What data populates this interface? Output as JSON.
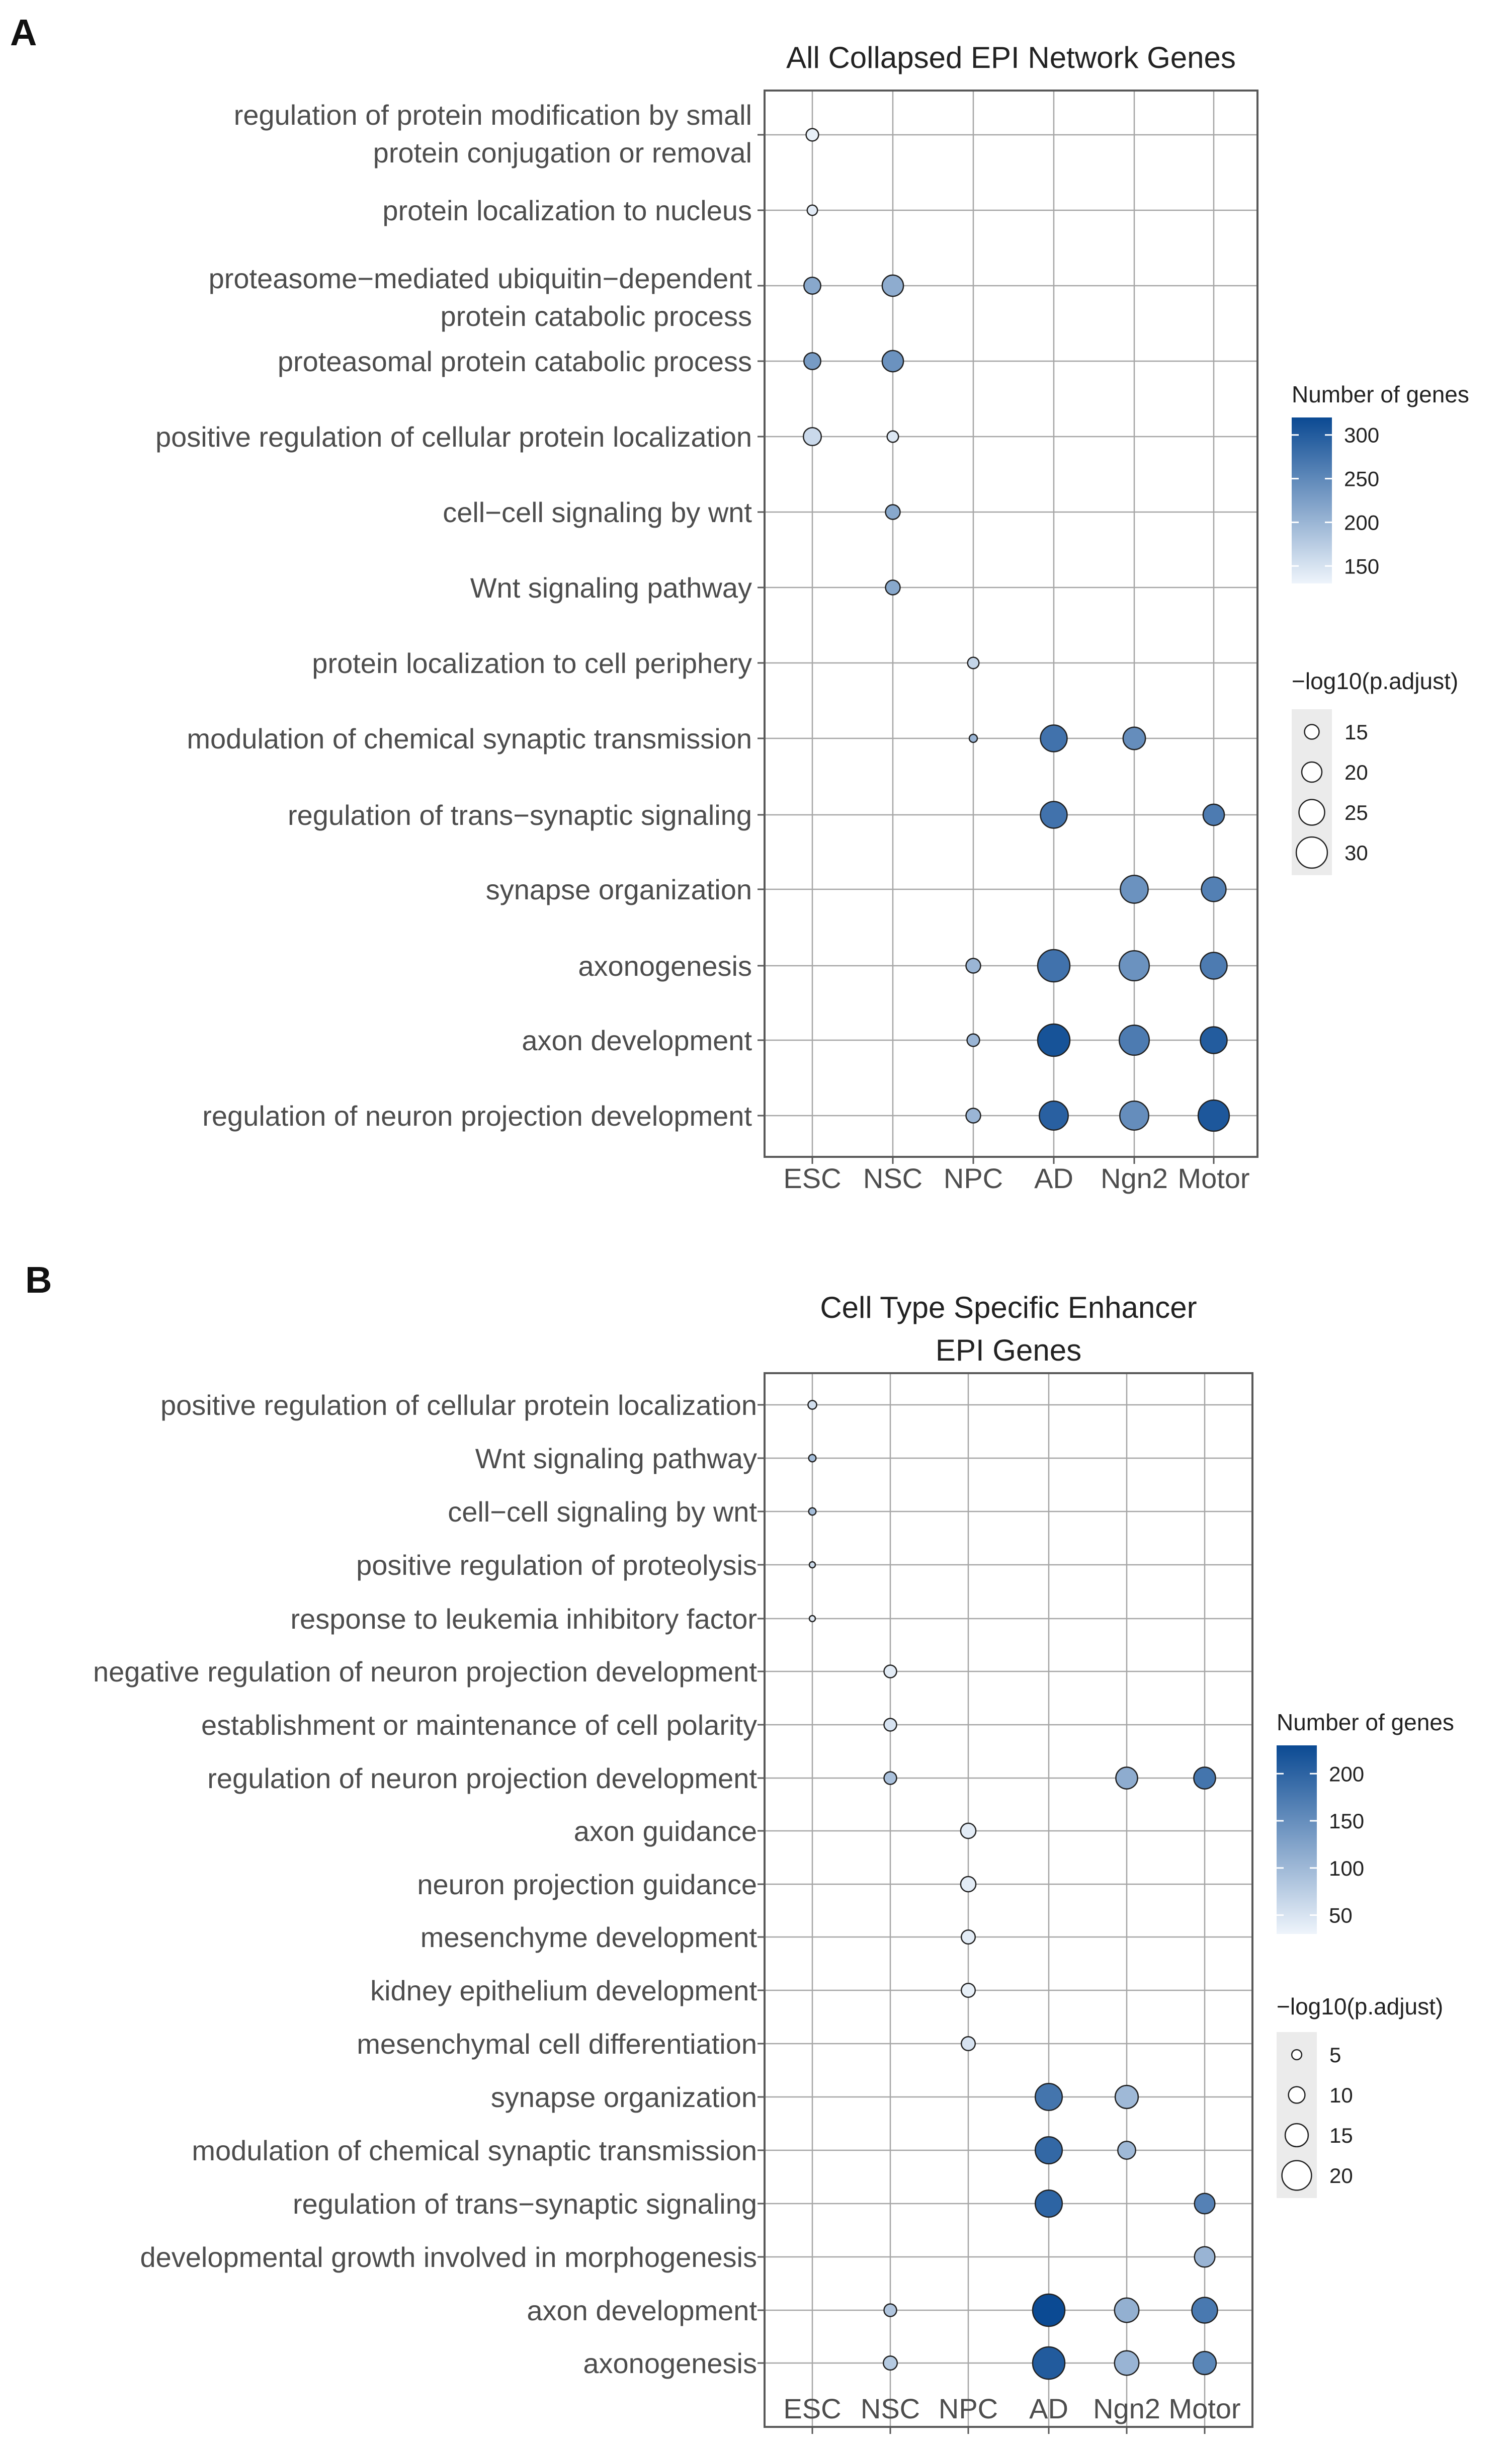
{
  "chart_data": [
    {
      "type": "scatter",
      "panel": "A",
      "title": "All Collapsed EPI Network Genes",
      "categories_x": [
        "ESC",
        "NSC",
        "NPC",
        "AD",
        "Ngn2",
        "Motor"
      ],
      "categories_y": [
        "regulation of protein modification by small\nprotein conjugation or removal",
        "protein localization to nucleus",
        "proteasome−mediated ubiquitin−dependent\nprotein catabolic process",
        "proteasomal protein catabolic process",
        "positive regulation of cellular protein localization",
        "cell−cell signaling by wnt",
        "Wnt signaling pathway",
        "protein localization to cell periphery",
        "modulation of chemical synaptic transmission",
        "regulation of trans−synaptic signaling",
        "synapse organization",
        "axonogenesis",
        "axon development",
        "regulation of neuron projection development"
      ],
      "color_legend": {
        "title": "Number of genes",
        "ticks": [
          300,
          250,
          200,
          150
        ],
        "range": [
          130,
          320
        ]
      },
      "size_legend": {
        "title": "−log10(p.adjust)",
        "ticks": [
          15,
          20,
          25,
          30
        ]
      },
      "points": [
        {
          "x": "ESC",
          "y": 0,
          "genes": 135,
          "log10p": 13
        },
        {
          "x": "ESC",
          "y": 1,
          "genes": 140,
          "log10p": 11
        },
        {
          "x": "ESC",
          "y": 2,
          "genes": 215,
          "log10p": 17
        },
        {
          "x": "NSC",
          "y": 2,
          "genes": 210,
          "log10p": 21
        },
        {
          "x": "ESC",
          "y": 3,
          "genes": 230,
          "log10p": 17
        },
        {
          "x": "NSC",
          "y": 3,
          "genes": 240,
          "log10p": 21
        },
        {
          "x": "ESC",
          "y": 4,
          "genes": 160,
          "log10p": 18
        },
        {
          "x": "NSC",
          "y": 4,
          "genes": 145,
          "log10p": 12
        },
        {
          "x": "NSC",
          "y": 5,
          "genes": 215,
          "log10p": 15
        },
        {
          "x": "NSC",
          "y": 6,
          "genes": 215,
          "log10p": 15
        },
        {
          "x": "NPC",
          "y": 7,
          "genes": 165,
          "log10p": 12
        },
        {
          "x": "NPC",
          "y": 8,
          "genes": 200,
          "log10p": 9
        },
        {
          "x": "AD",
          "y": 8,
          "genes": 275,
          "log10p": 26
        },
        {
          "x": "Ngn2",
          "y": 8,
          "genes": 245,
          "log10p": 22
        },
        {
          "x": "AD",
          "y": 9,
          "genes": 275,
          "log10p": 26
        },
        {
          "x": "Motor",
          "y": 9,
          "genes": 265,
          "log10p": 21
        },
        {
          "x": "Ngn2",
          "y": 10,
          "genes": 240,
          "log10p": 27
        },
        {
          "x": "Motor",
          "y": 10,
          "genes": 260,
          "log10p": 24
        },
        {
          "x": "NPC",
          "y": 11,
          "genes": 200,
          "log10p": 15
        },
        {
          "x": "AD",
          "y": 11,
          "genes": 275,
          "log10p": 31
        },
        {
          "x": "Ngn2",
          "y": 11,
          "genes": 240,
          "log10p": 29
        },
        {
          "x": "Motor",
          "y": 11,
          "genes": 265,
          "log10p": 26
        },
        {
          "x": "NPC",
          "y": 12,
          "genes": 200,
          "log10p": 13
        },
        {
          "x": "AD",
          "y": 12,
          "genes": 310,
          "log10p": 31
        },
        {
          "x": "Ngn2",
          "y": 12,
          "genes": 265,
          "log10p": 29
        },
        {
          "x": "Motor",
          "y": 12,
          "genes": 300,
          "log10p": 26
        },
        {
          "x": "NPC",
          "y": 13,
          "genes": 200,
          "log10p": 15
        },
        {
          "x": "AD",
          "y": 13,
          "genes": 295,
          "log10p": 28
        },
        {
          "x": "Ngn2",
          "y": 13,
          "genes": 245,
          "log10p": 28
        },
        {
          "x": "Motor",
          "y": 13,
          "genes": 305,
          "log10p": 30
        }
      ]
    },
    {
      "type": "scatter",
      "panel": "B",
      "title": "Cell Type Specific Enhancer\nEPI Genes",
      "categories_x": [
        "ESC",
        "NSC",
        "NPC",
        "AD",
        "Ngn2",
        "Motor"
      ],
      "categories_y": [
        "positive regulation of cellular protein localization",
        "Wnt signaling pathway",
        "cell−cell signaling by wnt",
        "positive regulation of proteolysis",
        "response to leukemia inhibitory factor",
        "negative regulation of neuron projection development",
        "establishment or maintenance of cell polarity",
        "regulation of neuron projection development",
        "axon guidance",
        "neuron projection guidance",
        "mesenchyme development",
        "kidney epithelium development",
        "mesenchymal cell differentiation",
        "synapse organization",
        "modulation of chemical synaptic transmission",
        "regulation of trans−synaptic signaling",
        "developmental growth involved in morphogenesis",
        "axon development",
        "axonogenesis"
      ],
      "color_legend": {
        "title": "Number of genes",
        "ticks": [
          200,
          150,
          100,
          50
        ],
        "range": [
          30,
          230
        ]
      },
      "size_legend": {
        "title": "−log10(p.adjust)",
        "ticks": [
          5,
          10,
          15,
          20
        ]
      },
      "points": [
        {
          "x": "ESC",
          "y": 0,
          "genes": 55,
          "log10p": 4
        },
        {
          "x": "ESC",
          "y": 1,
          "genes": 95,
          "log10p": 3
        },
        {
          "x": "ESC",
          "y": 2,
          "genes": 95,
          "log10p": 3
        },
        {
          "x": "ESC",
          "y": 3,
          "genes": 60,
          "log10p": 2
        },
        {
          "x": "ESC",
          "y": 4,
          "genes": 40,
          "log10p": 2
        },
        {
          "x": "NSC",
          "y": 5,
          "genes": 40,
          "log10p": 7
        },
        {
          "x": "NSC",
          "y": 6,
          "genes": 50,
          "log10p": 7
        },
        {
          "x": "NSC",
          "y": 7,
          "genes": 90,
          "log10p": 7
        },
        {
          "x": "Ngn2",
          "y": 7,
          "genes": 115,
          "log10p": 14
        },
        {
          "x": "Motor",
          "y": 7,
          "genes": 180,
          "log10p": 14
        },
        {
          "x": "NPC",
          "y": 8,
          "genes": 40,
          "log10p": 9
        },
        {
          "x": "NPC",
          "y": 9,
          "genes": 40,
          "log10p": 9
        },
        {
          "x": "NPC",
          "y": 10,
          "genes": 40,
          "log10p": 8
        },
        {
          "x": "NPC",
          "y": 11,
          "genes": 35,
          "log10p": 8
        },
        {
          "x": "NPC",
          "y": 12,
          "genes": 50,
          "log10p": 8
        },
        {
          "x": "AD",
          "y": 13,
          "genes": 180,
          "log10p": 18
        },
        {
          "x": "Ngn2",
          "y": 13,
          "genes": 100,
          "log10p": 15
        },
        {
          "x": "AD",
          "y": 14,
          "genes": 195,
          "log10p": 18
        },
        {
          "x": "Ngn2",
          "y": 14,
          "genes": 100,
          "log10p": 11
        },
        {
          "x": "AD",
          "y": 15,
          "genes": 200,
          "log10p": 18
        },
        {
          "x": "Motor",
          "y": 15,
          "genes": 165,
          "log10p": 13
        },
        {
          "x": "Motor",
          "y": 16,
          "genes": 105,
          "log10p": 13
        },
        {
          "x": "NSC",
          "y": 17,
          "genes": 85,
          "log10p": 7
        },
        {
          "x": "AD",
          "y": 17,
          "genes": 230,
          "log10p": 22
        },
        {
          "x": "Ngn2",
          "y": 17,
          "genes": 110,
          "log10p": 16
        },
        {
          "x": "Motor",
          "y": 17,
          "genes": 175,
          "log10p": 17
        },
        {
          "x": "NSC",
          "y": 18,
          "genes": 80,
          "log10p": 8
        },
        {
          "x": "AD",
          "y": 18,
          "genes": 210,
          "log10p": 22
        },
        {
          "x": "Ngn2",
          "y": 18,
          "genes": 105,
          "log10p": 16
        },
        {
          "x": "Motor",
          "y": 18,
          "genes": 160,
          "log10p": 15
        }
      ]
    }
  ],
  "labels": {
    "panel_a": "A",
    "panel_b": "B"
  },
  "colors": {
    "low": "#eef4fb",
    "high": "#0b4a93",
    "grid": "#a6a6a6",
    "frame": "#595959"
  }
}
